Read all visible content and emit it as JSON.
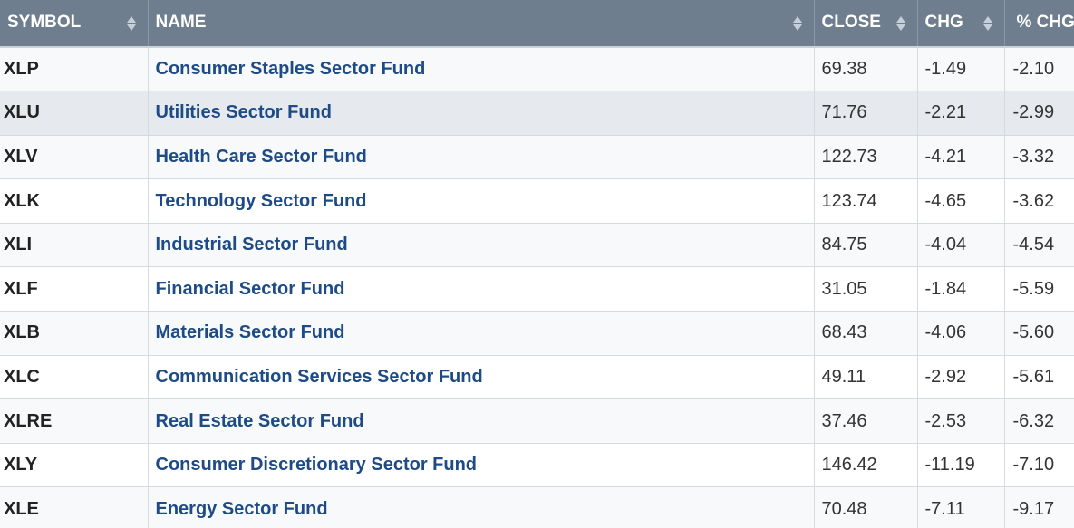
{
  "headers": {
    "symbol": "SYMBOL",
    "name": "NAME",
    "close": "CLOSE",
    "chg": "CHG",
    "pct_chg": "% CHG"
  },
  "rows": [
    {
      "symbol": "XLP",
      "name": "Consumer Staples Sector Fund",
      "close": "69.38",
      "chg": "-1.49",
      "pct_chg": "-2.10"
    },
    {
      "symbol": "XLU",
      "name": "Utilities Sector Fund",
      "close": "71.76",
      "chg": "-2.21",
      "pct_chg": "-2.99"
    },
    {
      "symbol": "XLV",
      "name": "Health Care Sector Fund",
      "close": "122.73",
      "chg": "-4.21",
      "pct_chg": "-3.32"
    },
    {
      "symbol": "XLK",
      "name": "Technology Sector Fund",
      "close": "123.74",
      "chg": "-4.65",
      "pct_chg": "-3.62"
    },
    {
      "symbol": "XLI",
      "name": "Industrial Sector Fund",
      "close": "84.75",
      "chg": "-4.04",
      "pct_chg": "-4.54"
    },
    {
      "symbol": "XLF",
      "name": "Financial Sector Fund",
      "close": "31.05",
      "chg": "-1.84",
      "pct_chg": "-5.59"
    },
    {
      "symbol": "XLB",
      "name": "Materials Sector Fund",
      "close": "68.43",
      "chg": "-4.06",
      "pct_chg": "-5.60"
    },
    {
      "symbol": "XLC",
      "name": "Communication Services Sector Fund",
      "close": "49.11",
      "chg": "-2.92",
      "pct_chg": "-5.61"
    },
    {
      "symbol": "XLRE",
      "name": "Real Estate Sector Fund",
      "close": "37.46",
      "chg": "-2.53",
      "pct_chg": "-6.32"
    },
    {
      "symbol": "XLY",
      "name": "Consumer Discretionary Sector Fund",
      "close": "146.42",
      "chg": "-11.19",
      "pct_chg": "-7.10"
    },
    {
      "symbol": "XLE",
      "name": "Energy Sector Fund",
      "close": "70.48",
      "chg": "-7.11",
      "pct_chg": "-9.17"
    }
  ],
  "highlighted_row": "XLU",
  "colors": {
    "header_bg": "#6e7e8f",
    "link": "#1e4b86",
    "row_highlight": "#e6eaee"
  },
  "icons": {
    "sort": "sort-arrows-icon"
  }
}
